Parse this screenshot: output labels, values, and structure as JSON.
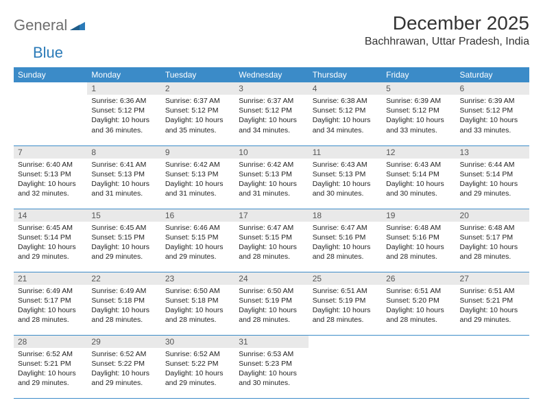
{
  "brand": {
    "general": "General",
    "blue": "Blue"
  },
  "header": {
    "month_title": "December 2025",
    "location": "Bachhrawan, Uttar Pradesh, India"
  },
  "colors": {
    "header_bg": "#3b8bc8",
    "header_text": "#ffffff",
    "daynum_bg": "#e9e9e9",
    "daynum_text": "#555555",
    "rule": "#3b8bc8",
    "logo_gray": "#6e6e6e",
    "logo_blue": "#2a7ab8"
  },
  "weekdays": [
    "Sunday",
    "Monday",
    "Tuesday",
    "Wednesday",
    "Thursday",
    "Friday",
    "Saturday"
  ],
  "weeks": [
    [
      {
        "n": "",
        "sunrise": "",
        "sunset": "",
        "daylight": ""
      },
      {
        "n": "1",
        "sunrise": "Sunrise: 6:36 AM",
        "sunset": "Sunset: 5:12 PM",
        "daylight": "Daylight: 10 hours and 36 minutes."
      },
      {
        "n": "2",
        "sunrise": "Sunrise: 6:37 AM",
        "sunset": "Sunset: 5:12 PM",
        "daylight": "Daylight: 10 hours and 35 minutes."
      },
      {
        "n": "3",
        "sunrise": "Sunrise: 6:37 AM",
        "sunset": "Sunset: 5:12 PM",
        "daylight": "Daylight: 10 hours and 34 minutes."
      },
      {
        "n": "4",
        "sunrise": "Sunrise: 6:38 AM",
        "sunset": "Sunset: 5:12 PM",
        "daylight": "Daylight: 10 hours and 34 minutes."
      },
      {
        "n": "5",
        "sunrise": "Sunrise: 6:39 AM",
        "sunset": "Sunset: 5:12 PM",
        "daylight": "Daylight: 10 hours and 33 minutes."
      },
      {
        "n": "6",
        "sunrise": "Sunrise: 6:39 AM",
        "sunset": "Sunset: 5:12 PM",
        "daylight": "Daylight: 10 hours and 33 minutes."
      }
    ],
    [
      {
        "n": "7",
        "sunrise": "Sunrise: 6:40 AM",
        "sunset": "Sunset: 5:13 PM",
        "daylight": "Daylight: 10 hours and 32 minutes."
      },
      {
        "n": "8",
        "sunrise": "Sunrise: 6:41 AM",
        "sunset": "Sunset: 5:13 PM",
        "daylight": "Daylight: 10 hours and 31 minutes."
      },
      {
        "n": "9",
        "sunrise": "Sunrise: 6:42 AM",
        "sunset": "Sunset: 5:13 PM",
        "daylight": "Daylight: 10 hours and 31 minutes."
      },
      {
        "n": "10",
        "sunrise": "Sunrise: 6:42 AM",
        "sunset": "Sunset: 5:13 PM",
        "daylight": "Daylight: 10 hours and 31 minutes."
      },
      {
        "n": "11",
        "sunrise": "Sunrise: 6:43 AM",
        "sunset": "Sunset: 5:13 PM",
        "daylight": "Daylight: 10 hours and 30 minutes."
      },
      {
        "n": "12",
        "sunrise": "Sunrise: 6:43 AM",
        "sunset": "Sunset: 5:14 PM",
        "daylight": "Daylight: 10 hours and 30 minutes."
      },
      {
        "n": "13",
        "sunrise": "Sunrise: 6:44 AM",
        "sunset": "Sunset: 5:14 PM",
        "daylight": "Daylight: 10 hours and 29 minutes."
      }
    ],
    [
      {
        "n": "14",
        "sunrise": "Sunrise: 6:45 AM",
        "sunset": "Sunset: 5:14 PM",
        "daylight": "Daylight: 10 hours and 29 minutes."
      },
      {
        "n": "15",
        "sunrise": "Sunrise: 6:45 AM",
        "sunset": "Sunset: 5:15 PM",
        "daylight": "Daylight: 10 hours and 29 minutes."
      },
      {
        "n": "16",
        "sunrise": "Sunrise: 6:46 AM",
        "sunset": "Sunset: 5:15 PM",
        "daylight": "Daylight: 10 hours and 29 minutes."
      },
      {
        "n": "17",
        "sunrise": "Sunrise: 6:47 AM",
        "sunset": "Sunset: 5:15 PM",
        "daylight": "Daylight: 10 hours and 28 minutes."
      },
      {
        "n": "18",
        "sunrise": "Sunrise: 6:47 AM",
        "sunset": "Sunset: 5:16 PM",
        "daylight": "Daylight: 10 hours and 28 minutes."
      },
      {
        "n": "19",
        "sunrise": "Sunrise: 6:48 AM",
        "sunset": "Sunset: 5:16 PM",
        "daylight": "Daylight: 10 hours and 28 minutes."
      },
      {
        "n": "20",
        "sunrise": "Sunrise: 6:48 AM",
        "sunset": "Sunset: 5:17 PM",
        "daylight": "Daylight: 10 hours and 28 minutes."
      }
    ],
    [
      {
        "n": "21",
        "sunrise": "Sunrise: 6:49 AM",
        "sunset": "Sunset: 5:17 PM",
        "daylight": "Daylight: 10 hours and 28 minutes."
      },
      {
        "n": "22",
        "sunrise": "Sunrise: 6:49 AM",
        "sunset": "Sunset: 5:18 PM",
        "daylight": "Daylight: 10 hours and 28 minutes."
      },
      {
        "n": "23",
        "sunrise": "Sunrise: 6:50 AM",
        "sunset": "Sunset: 5:18 PM",
        "daylight": "Daylight: 10 hours and 28 minutes."
      },
      {
        "n": "24",
        "sunrise": "Sunrise: 6:50 AM",
        "sunset": "Sunset: 5:19 PM",
        "daylight": "Daylight: 10 hours and 28 minutes."
      },
      {
        "n": "25",
        "sunrise": "Sunrise: 6:51 AM",
        "sunset": "Sunset: 5:19 PM",
        "daylight": "Daylight: 10 hours and 28 minutes."
      },
      {
        "n": "26",
        "sunrise": "Sunrise: 6:51 AM",
        "sunset": "Sunset: 5:20 PM",
        "daylight": "Daylight: 10 hours and 28 minutes."
      },
      {
        "n": "27",
        "sunrise": "Sunrise: 6:51 AM",
        "sunset": "Sunset: 5:21 PM",
        "daylight": "Daylight: 10 hours and 29 minutes."
      }
    ],
    [
      {
        "n": "28",
        "sunrise": "Sunrise: 6:52 AM",
        "sunset": "Sunset: 5:21 PM",
        "daylight": "Daylight: 10 hours and 29 minutes."
      },
      {
        "n": "29",
        "sunrise": "Sunrise: 6:52 AM",
        "sunset": "Sunset: 5:22 PM",
        "daylight": "Daylight: 10 hours and 29 minutes."
      },
      {
        "n": "30",
        "sunrise": "Sunrise: 6:52 AM",
        "sunset": "Sunset: 5:22 PM",
        "daylight": "Daylight: 10 hours and 29 minutes."
      },
      {
        "n": "31",
        "sunrise": "Sunrise: 6:53 AM",
        "sunset": "Sunset: 5:23 PM",
        "daylight": "Daylight: 10 hours and 30 minutes."
      },
      {
        "n": "",
        "sunrise": "",
        "sunset": "",
        "daylight": ""
      },
      {
        "n": "",
        "sunrise": "",
        "sunset": "",
        "daylight": ""
      },
      {
        "n": "",
        "sunrise": "",
        "sunset": "",
        "daylight": ""
      }
    ]
  ]
}
